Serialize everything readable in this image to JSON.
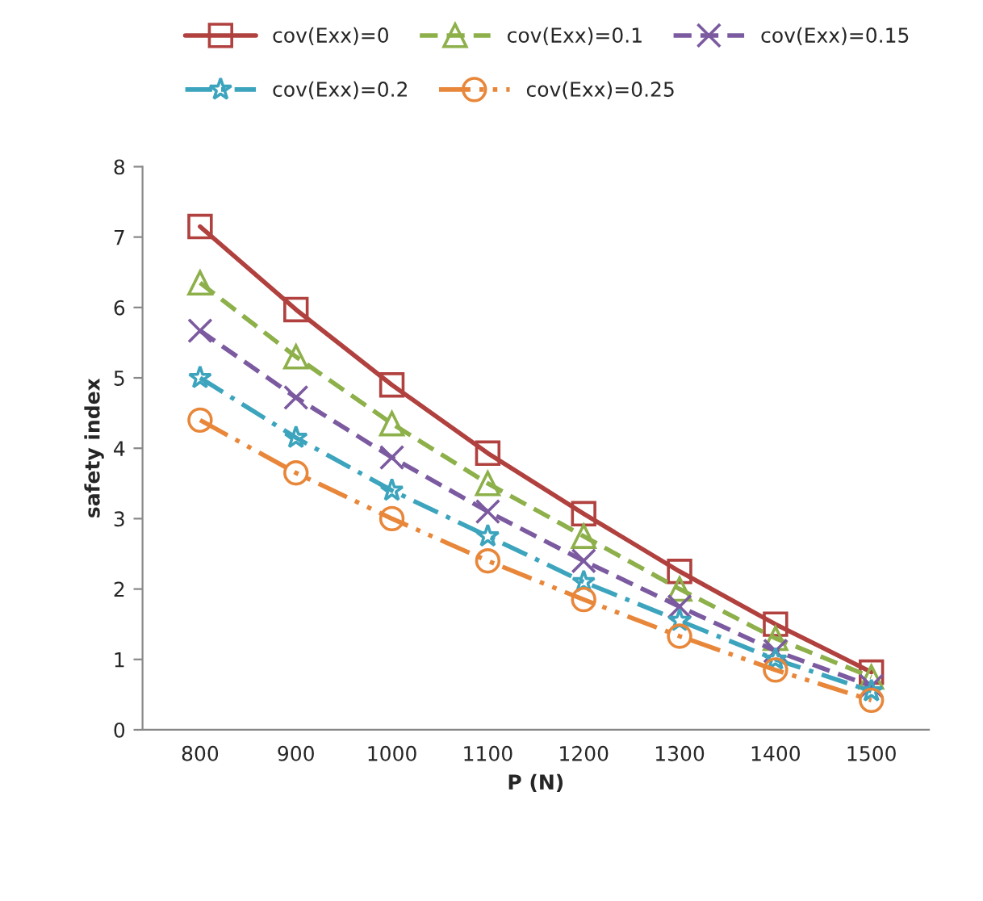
{
  "chart_data": {
    "type": "line",
    "xlabel": "P (N)",
    "ylabel": "safety index",
    "categories": [
      "800",
      "900",
      "1000",
      "1100",
      "1200",
      "1300",
      "1400",
      "1500"
    ],
    "ylim": [
      0,
      8
    ],
    "yticks": [
      0,
      1,
      2,
      3,
      4,
      5,
      6,
      7,
      8
    ],
    "grid": false,
    "legend": "top",
    "series": [
      {
        "name": "cov(Exx)=0",
        "color": "#b0413e",
        "marker": "square",
        "line_style": "solid",
        "values": [
          7.15,
          5.97,
          4.9,
          3.93,
          3.07,
          2.25,
          1.5,
          0.82
        ]
      },
      {
        "name": "cov(Exx)=0.1",
        "color": "#8db04a",
        "marker": "triangle",
        "line_style": "dashed",
        "values": [
          6.35,
          5.3,
          4.35,
          3.5,
          2.75,
          2.0,
          1.3,
          0.75
        ]
      },
      {
        "name": "cov(Exx)=0.15",
        "color": "#7b5aa0",
        "marker": "cross",
        "line_style": "dashed",
        "values": [
          5.67,
          4.72,
          3.87,
          3.1,
          2.4,
          1.75,
          1.12,
          0.62
        ]
      },
      {
        "name": "cov(Exx)=0.2",
        "color": "#3ca4bd",
        "marker": "star",
        "line_style": "dashdot",
        "values": [
          5.0,
          4.15,
          3.4,
          2.75,
          2.1,
          1.55,
          1.0,
          0.55
        ]
      },
      {
        "name": "cov(Exx)=0.25",
        "color": "#e8873a",
        "marker": "circle",
        "line_style": "dashdotdot",
        "values": [
          4.4,
          3.65,
          3.0,
          2.4,
          1.85,
          1.33,
          0.85,
          0.42
        ]
      }
    ]
  }
}
